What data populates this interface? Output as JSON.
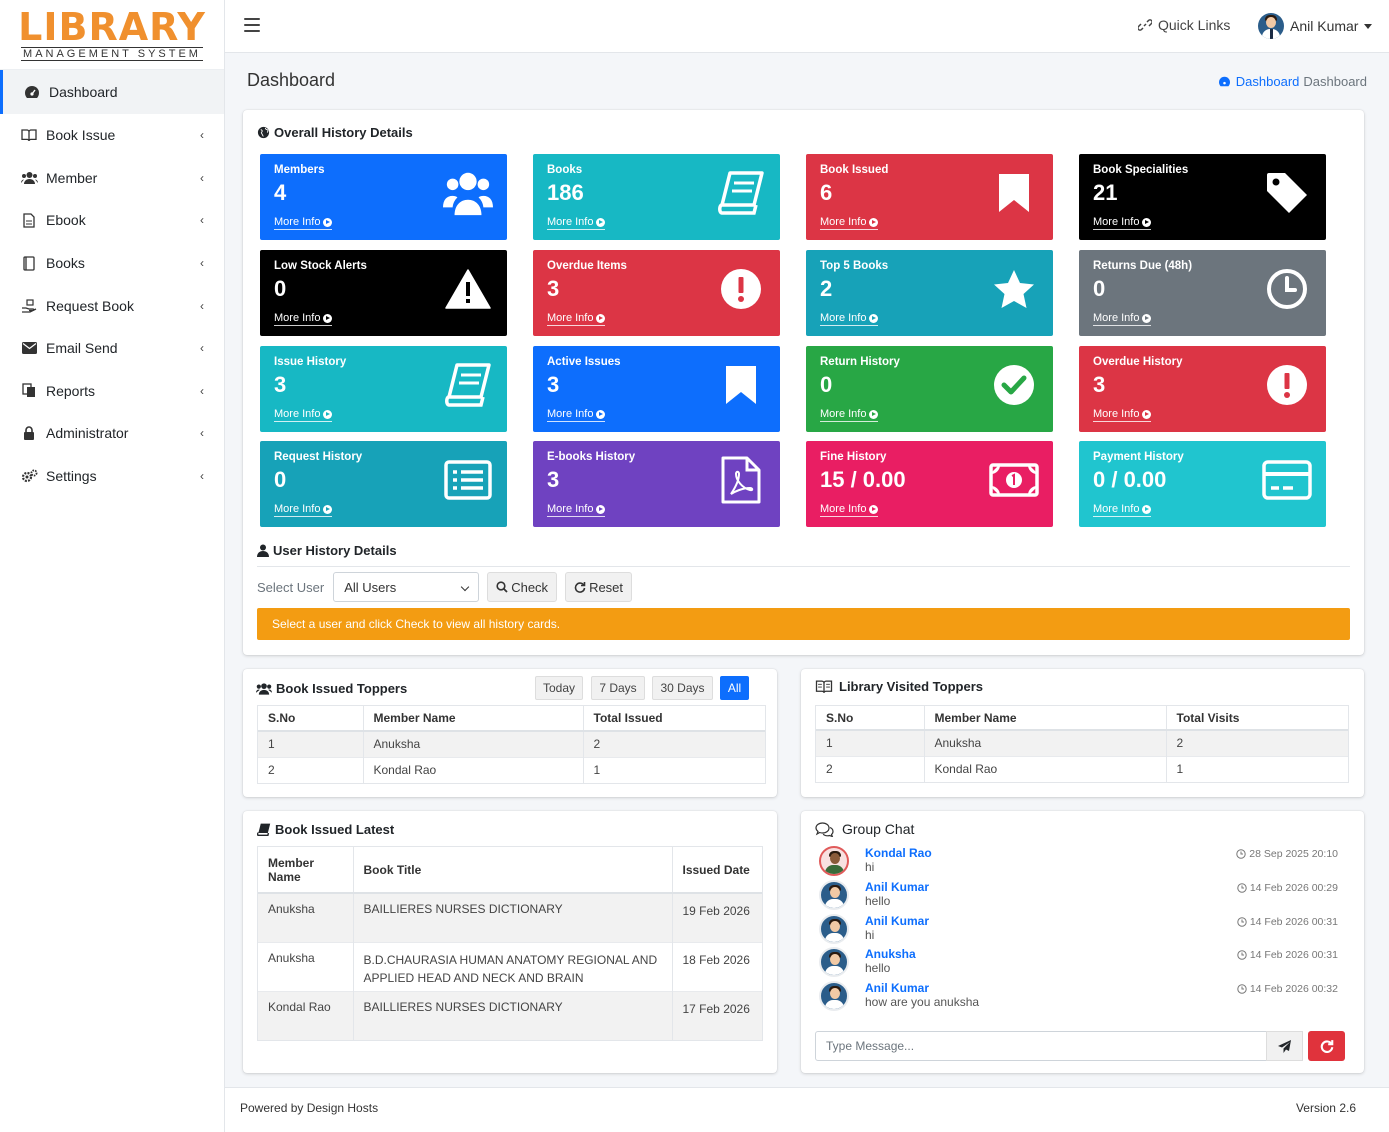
{
  "brand": {
    "main": "LIBRARY",
    "sub": "MANAGEMENT SYSTEM",
    "accent": "#f0902e"
  },
  "sidebar": {
    "items": [
      {
        "label": "Dashboard",
        "icon": "dashboard-gauge-icon",
        "active": true
      },
      {
        "label": "Book Issue",
        "icon": "open-book-icon"
      },
      {
        "label": "Member",
        "icon": "users-icon"
      },
      {
        "label": "Ebook",
        "icon": "file-icon"
      },
      {
        "label": "Books",
        "icon": "book-icon"
      },
      {
        "label": "Request Book",
        "icon": "hand-request-icon"
      },
      {
        "label": "Email Send",
        "icon": "envelope-icon"
      },
      {
        "label": "Reports",
        "icon": "copy-icon"
      },
      {
        "label": "Administrator",
        "icon": "lock-icon"
      },
      {
        "label": "Settings",
        "icon": "gears-icon"
      }
    ]
  },
  "header": {
    "quick_links": "Quick Links",
    "user_name": "Anil Kumar"
  },
  "page": {
    "title": "Dashboard",
    "breadcrumb_link": "Dashboard",
    "breadcrumb_current": "Dashboard"
  },
  "overall": {
    "title": "Overall History Details",
    "more_info": "More Info",
    "tiles": [
      {
        "label": "Members",
        "value": "4",
        "color": "#0d6efd",
        "icon": "users-icon"
      },
      {
        "label": "Books",
        "value": "186",
        "color": "#17b8c4",
        "icon": "book-icon"
      },
      {
        "label": "Book Issued",
        "value": "6",
        "color": "#dc3545",
        "icon": "bookmark-icon"
      },
      {
        "label": "Book Specialities",
        "value": "21",
        "color": "#000000",
        "icon": "tag-icon"
      },
      {
        "label": "Low Stock Alerts",
        "value": "0",
        "color": "#000000",
        "icon": "warning-icon"
      },
      {
        "label": "Overdue Items",
        "value": "3",
        "color": "#dc3545",
        "icon": "exclamation-circle-icon"
      },
      {
        "label": "Top 5 Books",
        "value": "2",
        "color": "#17a2b8",
        "icon": "star-icon"
      },
      {
        "label": "Returns Due (48h)",
        "value": "0",
        "color": "#6c757d",
        "icon": "clock-icon"
      },
      {
        "label": "Issue History",
        "value": "3",
        "color": "#17b8c4",
        "icon": "book-icon"
      },
      {
        "label": "Active Issues",
        "value": "3",
        "color": "#0d6efd",
        "icon": "bookmark-icon"
      },
      {
        "label": "Return History",
        "value": "0",
        "color": "#28a745",
        "icon": "check-circle-icon"
      },
      {
        "label": "Overdue History",
        "value": "3",
        "color": "#dc3545",
        "icon": "exclamation-circle-icon"
      },
      {
        "label": "Request History",
        "value": "0",
        "color": "#17a2b8",
        "icon": "list-icon"
      },
      {
        "label": "E-books History",
        "value": "3",
        "color": "#6f42c1",
        "icon": "pdf-file-icon"
      },
      {
        "label": "Fine History",
        "value": "15 / 0.00",
        "color": "#e91e63",
        "icon": "money-bill-icon"
      },
      {
        "label": "Payment History",
        "value": "0 / 0.00",
        "color": "#20c5cf",
        "icon": "credit-card-icon"
      }
    ]
  },
  "user_history": {
    "title": "User History Details",
    "select_label": "Select User",
    "select_value": "All Users",
    "check": "Check",
    "reset": "Reset",
    "alert": "Select a user and click Check to view all history cards."
  },
  "toppers": {
    "title": "Book Issued Toppers",
    "ranges": [
      "Today",
      "7 Days",
      "30 Days",
      "All"
    ],
    "headers": [
      "S.No",
      "Member Name",
      "Total Issued"
    ],
    "rows": [
      [
        "1",
        "Anuksha",
        "2"
      ],
      [
        "2",
        "Kondal Rao",
        "1"
      ]
    ]
  },
  "visited": {
    "title": "Library Visited Toppers",
    "headers": [
      "S.No",
      "Member Name",
      "Total Visits"
    ],
    "rows": [
      [
        "1",
        "Anuksha",
        "2"
      ],
      [
        "2",
        "Kondal Rao",
        "1"
      ]
    ]
  },
  "latest": {
    "title": "Book Issued Latest",
    "headers": [
      "Member Name",
      "Book Title",
      "Issued Date"
    ],
    "rows": [
      [
        "Anuksha",
        "BAILLIERES NURSES DICTIONARY",
        "19 Feb 2026"
      ],
      [
        "Anuksha",
        "B.D.CHAURASIA HUMAN ANATOMY REGIONAL AND APPLIED HEAD AND NECK AND BRAIN",
        "18 Feb 2026"
      ],
      [
        "Kondal Rao",
        "BAILLIERES NURSES DICTIONARY",
        "17 Feb 2026"
      ]
    ]
  },
  "chat": {
    "title": "Group Chat",
    "placeholder": "Type Message...",
    "messages": [
      {
        "name": "Kondal Rao",
        "text": "hi",
        "time": "28 Sep 2025 20:10"
      },
      {
        "name": "Anil Kumar",
        "text": "hello",
        "time": "14 Feb 2026 00:29"
      },
      {
        "name": "Anil Kumar",
        "text": "hi",
        "time": "14 Feb 2026 00:31"
      },
      {
        "name": "Anuksha",
        "text": "hello",
        "time": "14 Feb 2026 00:31"
      },
      {
        "name": "Anil Kumar",
        "text": "how are you anuksha",
        "time": "14 Feb 2026 00:32"
      }
    ]
  },
  "footer": {
    "powered": "Powered by Design Hosts",
    "version": "Version 2.6"
  }
}
